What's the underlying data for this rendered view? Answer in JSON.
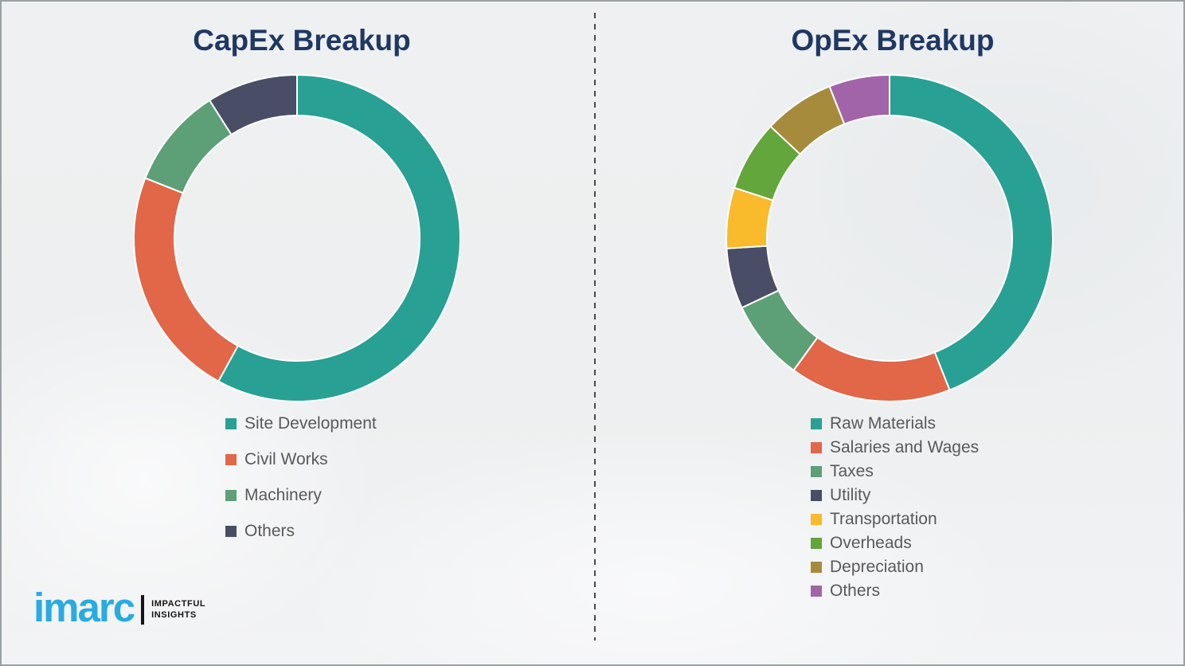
{
  "page": {
    "background_color": "#eef0f1",
    "frame_border_color": "#9aa0a4",
    "title_color": "#1f3864",
    "legend_text_color": "#595959"
  },
  "divider": {
    "style": "vertical-dashed",
    "color": "#4a4a4a"
  },
  "chart_data": [
    {
      "type": "pie",
      "donut": true,
      "title": "CapEx Breakup",
      "labels": [
        "Site Development",
        "Civil Works",
        "Machinery",
        "Others"
      ],
      "values": [
        58,
        23,
        10,
        9
      ],
      "unit": "percent-estimated",
      "colors": [
        "#28a194",
        "#e16748",
        "#5da077",
        "#494e66"
      ],
      "start_angle_deg": 0,
      "direction": "clockwise",
      "legend_position": "below-left",
      "data_labels_shown": false
    },
    {
      "type": "pie",
      "donut": true,
      "title": "OpEx Breakup",
      "labels": [
        "Raw Materials",
        "Salaries and Wages",
        "Taxes",
        "Utility",
        "Transportation",
        "Overheads",
        "Depreciation",
        "Others"
      ],
      "values": [
        44,
        16,
        8,
        6,
        6,
        7,
        7,
        6
      ],
      "unit": "percent-estimated",
      "colors": [
        "#28a194",
        "#e16748",
        "#5da077",
        "#494e66",
        "#f9ba2b",
        "#63a63b",
        "#a78b3d",
        "#a264a8"
      ],
      "start_angle_deg": 0,
      "direction": "clockwise",
      "legend_position": "below-left",
      "data_labels_shown": false
    }
  ],
  "logo": {
    "brand": "imarc",
    "brand_color": "#29abe2",
    "tagline_line1": "IMPACTFUL",
    "tagline_line2": "INSIGHTS",
    "tagline_color": "#151515"
  }
}
